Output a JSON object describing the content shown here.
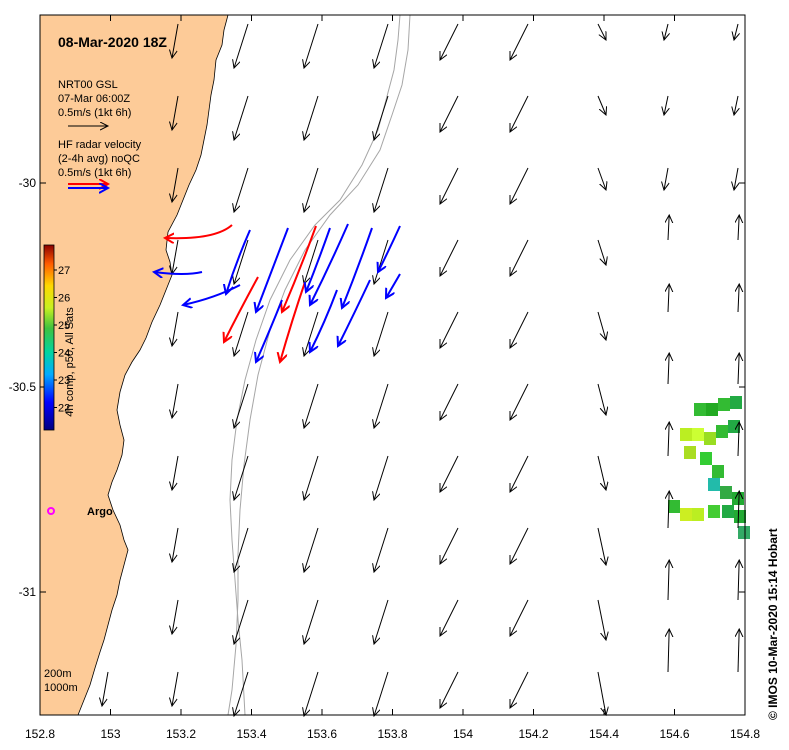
{
  "title": "08-Mar-2020 18Z",
  "legend": {
    "model_name": "NRT00 GSL",
    "model_time": "07-Mar 06:00Z",
    "model_scale": "0.5m/s (1kt 6h)",
    "radar_name": "HF radar velocity",
    "radar_avg": "(2-4h avg) noQC",
    "radar_scale": "0.5m/s (1kt 6h)"
  },
  "colorbar": {
    "label": "4h comp, p50, All Sats",
    "ticks": [
      "27",
      "26",
      "25",
      "24",
      "23",
      "22"
    ]
  },
  "x_ticks": [
    "152.8",
    "153",
    "153.2",
    "153.4",
    "153.6",
    "153.8",
    "154",
    "154.2",
    "154.4",
    "154.6",
    "154.8"
  ],
  "y_ticks": [
    "-30",
    "-30.5",
    "-31"
  ],
  "argo_label": "Argo",
  "isobaths": {
    "d1": "200m",
    "d2": "1000m"
  },
  "credit": "© IMOS 10-Mar-2020 15:14 Hobart",
  "colors": {
    "land": "#fdcb98",
    "radar_red": "#ff0000",
    "radar_blue": "#0000ff",
    "argo": "#ff00ff",
    "isobath": "#a6a6a6"
  }
}
